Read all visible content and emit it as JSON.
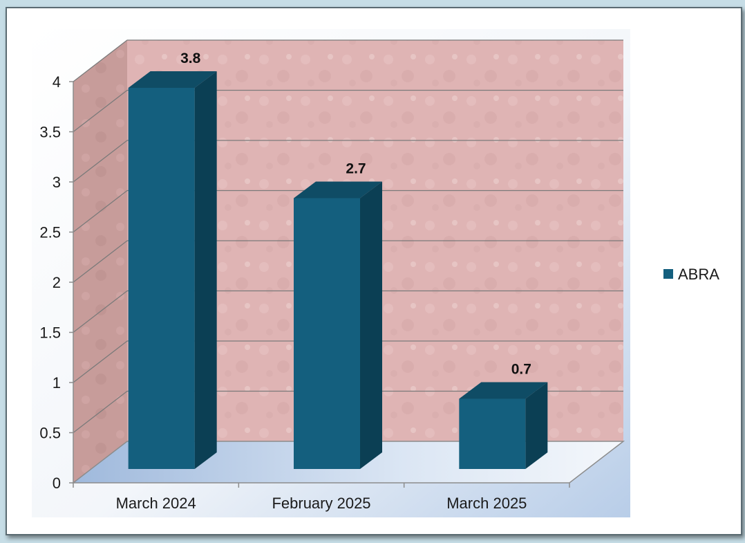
{
  "chart_data": {
    "type": "bar",
    "style": "3d-column",
    "categories": [
      "March 2024",
      "February 2025",
      "March 2025"
    ],
    "series": [
      {
        "name": "ABRA",
        "values": [
          3.8,
          2.7,
          0.7
        ],
        "color": "#145f7e"
      }
    ],
    "data_labels": [
      "3.8",
      "2.7",
      "0.7"
    ],
    "y_ticks": [
      "0",
      "0.5",
      "1",
      "1.5",
      "2",
      "2.5",
      "3",
      "3.5",
      "4"
    ],
    "ylim": [
      0,
      4
    ],
    "grid": true,
    "legend_position": "right",
    "title": "",
    "xlabel": "",
    "ylabel": ""
  },
  "colors": {
    "bar_front": "#145f7e",
    "bar_side": "#0b3f54",
    "bar_top": "#0f4c65",
    "back_wall": "#dfb4b4",
    "side_wall": "#c79c9a",
    "floor": "#bfd3ea",
    "gridline": "#7a7a7a"
  }
}
